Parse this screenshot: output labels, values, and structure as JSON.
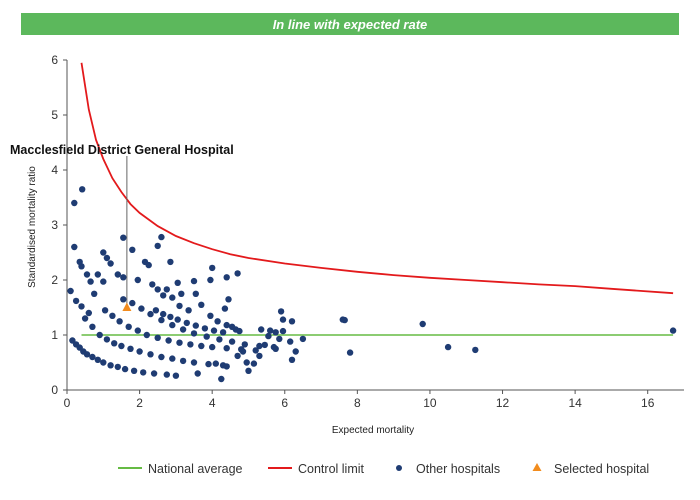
{
  "banner": {
    "text": "In line with expected rate",
    "color": "#5cb85c"
  },
  "chart_data": {
    "type": "scatter",
    "xlabel": "Expected mortality",
    "ylabel": "Standardised mortality ratio",
    "xlim": [
      0,
      17
    ],
    "ylim": [
      0,
      6
    ],
    "xticks": [
      0,
      2,
      4,
      6,
      8,
      10,
      12,
      14,
      16
    ],
    "yticks": [
      0,
      1,
      2,
      3,
      4,
      5,
      6
    ],
    "grid": false,
    "legend_position": "bottom-right",
    "annotation": {
      "text": "Macclesfield District General Hospital",
      "x": 1.65,
      "y": 1.5
    },
    "series": [
      {
        "name": "National average",
        "kind": "line",
        "color": "#66bb44",
        "points": [
          [
            0.4,
            1
          ],
          [
            16.7,
            1
          ]
        ]
      },
      {
        "name": "Control limit",
        "kind": "line",
        "color": "#e31a1c",
        "points": [
          [
            0.4,
            5.95
          ],
          [
            0.6,
            5.1
          ],
          [
            0.8,
            4.55
          ],
          [
            1.0,
            4.2
          ],
          [
            1.25,
            3.85
          ],
          [
            1.5,
            3.6
          ],
          [
            1.75,
            3.38
          ],
          [
            2.0,
            3.22
          ],
          [
            2.5,
            2.98
          ],
          [
            3.0,
            2.8
          ],
          [
            3.5,
            2.67
          ],
          [
            4.0,
            2.56
          ],
          [
            4.5,
            2.47
          ],
          [
            5.0,
            2.4
          ],
          [
            6.0,
            2.3
          ],
          [
            7.0,
            2.22
          ],
          [
            8.0,
            2.15
          ],
          [
            9.0,
            2.09
          ],
          [
            10.0,
            2.04
          ],
          [
            11.0,
            2.0
          ],
          [
            12.0,
            1.96
          ],
          [
            13.0,
            1.92
          ],
          [
            14.0,
            1.89
          ],
          [
            15.0,
            1.84
          ],
          [
            16.7,
            1.76
          ]
        ]
      },
      {
        "name": "Other hospitals",
        "kind": "points",
        "color": "#1f3c73",
        "points": [
          [
            0.2,
            3.4
          ],
          [
            0.42,
            3.65
          ],
          [
            0.2,
            2.6
          ],
          [
            0.35,
            2.33
          ],
          [
            0.4,
            2.25
          ],
          [
            0.55,
            2.1
          ],
          [
            0.85,
            2.1
          ],
          [
            1.0,
            2.5
          ],
          [
            1.1,
            2.4
          ],
          [
            1.2,
            2.3
          ],
          [
            1.4,
            2.1
          ],
          [
            1.55,
            2.05
          ],
          [
            1.95,
            2.0
          ],
          [
            1.0,
            1.97
          ],
          [
            0.65,
            1.97
          ],
          [
            0.1,
            1.8
          ],
          [
            0.25,
            1.62
          ],
          [
            0.4,
            1.52
          ],
          [
            0.6,
            1.4
          ],
          [
            0.75,
            1.75
          ],
          [
            1.55,
            2.77
          ],
          [
            1.8,
            2.55
          ],
          [
            2.5,
            2.62
          ],
          [
            2.6,
            2.78
          ],
          [
            2.15,
            2.33
          ],
          [
            2.25,
            2.27
          ],
          [
            2.85,
            2.33
          ],
          [
            2.75,
            1.83
          ],
          [
            3.05,
            1.95
          ],
          [
            3.5,
            1.98
          ],
          [
            3.95,
            2.0
          ],
          [
            4.0,
            2.22
          ],
          [
            4.4,
            2.05
          ],
          [
            4.7,
            2.12
          ],
          [
            3.15,
            1.75
          ],
          [
            3.55,
            1.75
          ],
          [
            3.7,
            1.55
          ],
          [
            4.45,
            1.65
          ],
          [
            4.35,
            1.48
          ],
          [
            4.65,
            1.1
          ],
          [
            2.35,
            1.92
          ],
          [
            2.5,
            1.83
          ],
          [
            2.65,
            1.72
          ],
          [
            2.9,
            1.68
          ],
          [
            2.45,
            1.45
          ],
          [
            2.65,
            1.38
          ],
          [
            2.85,
            1.33
          ],
          [
            3.05,
            1.28
          ],
          [
            3.3,
            1.22
          ],
          [
            3.55,
            1.17
          ],
          [
            3.8,
            1.12
          ],
          [
            4.05,
            1.08
          ],
          [
            4.3,
            1.05
          ],
          [
            3.1,
            1.53
          ],
          [
            3.35,
            1.45
          ],
          [
            3.95,
            1.35
          ],
          [
            4.15,
            1.25
          ],
          [
            4.4,
            1.18
          ],
          [
            4.55,
            1.15
          ],
          [
            4.75,
            1.07
          ],
          [
            5.35,
            1.1
          ],
          [
            5.6,
            1.08
          ],
          [
            5.75,
            1.05
          ],
          [
            5.95,
            1.07
          ],
          [
            5.9,
            1.43
          ],
          [
            5.95,
            1.28
          ],
          [
            6.2,
            1.25
          ],
          [
            5.55,
            0.98
          ],
          [
            5.85,
            0.93
          ],
          [
            6.15,
            0.88
          ],
          [
            6.5,
            0.93
          ],
          [
            5.45,
            0.82
          ],
          [
            5.75,
            0.75
          ],
          [
            6.3,
            0.7
          ],
          [
            5.3,
            0.62
          ],
          [
            6.2,
            0.55
          ],
          [
            4.95,
            0.5
          ],
          [
            5.15,
            0.48
          ],
          [
            4.7,
            0.62
          ],
          [
            4.85,
            0.7
          ],
          [
            4.25,
            0.2
          ],
          [
            3.6,
            0.3
          ],
          [
            4.4,
            0.43
          ],
          [
            4.1,
            0.48
          ],
          [
            5.0,
            0.35
          ],
          [
            7.6,
            1.28
          ],
          [
            7.65,
            1.27
          ],
          [
            7.8,
            0.68
          ],
          [
            9.8,
            1.2
          ],
          [
            10.5,
            0.78
          ],
          [
            11.25,
            0.73
          ],
          [
            16.7,
            1.08
          ],
          [
            0.15,
            0.9
          ],
          [
            0.25,
            0.83
          ],
          [
            0.35,
            0.77
          ],
          [
            0.45,
            0.7
          ],
          [
            0.55,
            0.65
          ],
          [
            0.7,
            0.6
          ],
          [
            0.85,
            0.55
          ],
          [
            1.0,
            0.5
          ],
          [
            1.2,
            0.45
          ],
          [
            1.4,
            0.42
          ],
          [
            1.6,
            0.38
          ],
          [
            1.85,
            0.35
          ],
          [
            2.1,
            0.32
          ],
          [
            2.4,
            0.3
          ],
          [
            2.75,
            0.28
          ],
          [
            3.0,
            0.26
          ],
          [
            0.5,
            1.3
          ],
          [
            0.7,
            1.15
          ],
          [
            0.9,
            1.0
          ],
          [
            1.1,
            0.92
          ],
          [
            1.3,
            0.85
          ],
          [
            1.5,
            0.8
          ],
          [
            1.75,
            0.75
          ],
          [
            2.0,
            0.7
          ],
          [
            2.3,
            0.65
          ],
          [
            2.6,
            0.6
          ],
          [
            2.9,
            0.57
          ],
          [
            3.2,
            0.53
          ],
          [
            3.5,
            0.5
          ],
          [
            3.9,
            0.47
          ],
          [
            4.3,
            0.45
          ],
          [
            1.05,
            1.45
          ],
          [
            1.25,
            1.35
          ],
          [
            1.45,
            1.25
          ],
          [
            1.7,
            1.15
          ],
          [
            1.95,
            1.08
          ],
          [
            2.2,
            1.0
          ],
          [
            2.5,
            0.95
          ],
          [
            2.8,
            0.9
          ],
          [
            3.1,
            0.86
          ],
          [
            3.4,
            0.83
          ],
          [
            3.7,
            0.8
          ],
          [
            4.0,
            0.78
          ],
          [
            4.4,
            0.76
          ],
          [
            4.8,
            0.74
          ],
          [
            5.2,
            0.72
          ],
          [
            1.55,
            1.65
          ],
          [
            1.8,
            1.58
          ],
          [
            2.05,
            1.48
          ],
          [
            2.3,
            1.38
          ],
          [
            2.6,
            1.27
          ],
          [
            2.9,
            1.18
          ],
          [
            3.2,
            1.1
          ],
          [
            3.5,
            1.03
          ],
          [
            3.85,
            0.97
          ],
          [
            4.2,
            0.92
          ],
          [
            4.55,
            0.88
          ],
          [
            4.9,
            0.83
          ],
          [
            5.3,
            0.8
          ],
          [
            5.7,
            0.78
          ]
        ]
      },
      {
        "name": "Selected hospital",
        "kind": "marker",
        "color": "#f28c1e",
        "points": [
          [
            1.65,
            1.5
          ]
        ]
      }
    ]
  }
}
